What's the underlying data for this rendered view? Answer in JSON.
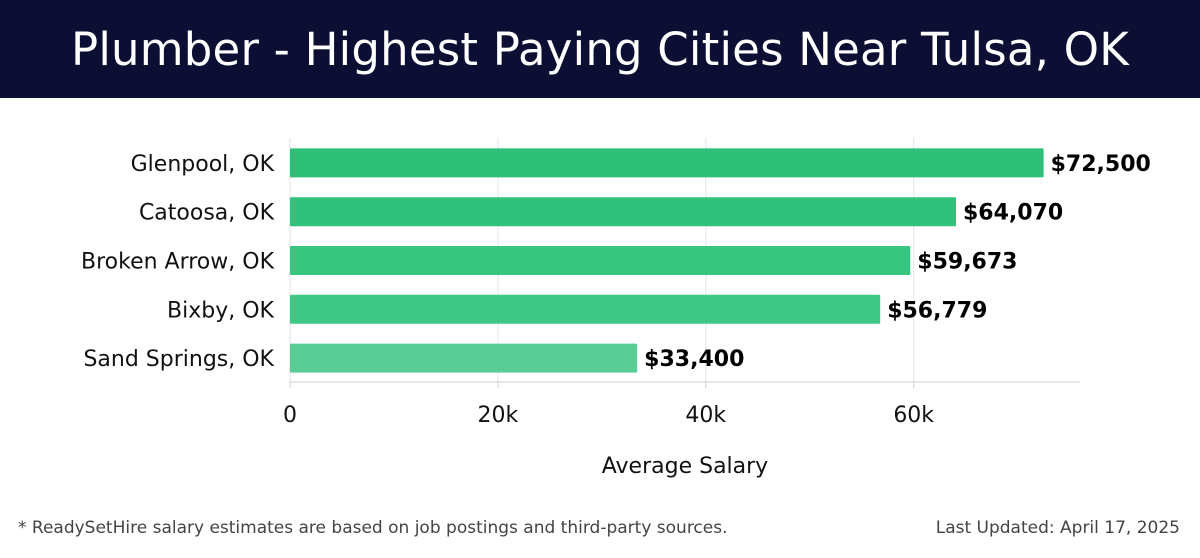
{
  "header": {
    "title": "Plumber - Highest Paying Cities Near Tulsa, OK"
  },
  "chart_data": {
    "type": "bar",
    "orientation": "horizontal",
    "title": "Plumber - Highest Paying Cities Near Tulsa, OK",
    "xlabel": "Average Salary",
    "ylabel": "",
    "categories": [
      "Glenpool, OK",
      "Catoosa, OK",
      "Broken Arrow, OK",
      "Bixby, OK",
      "Sand Springs, OK"
    ],
    "values": [
      72500,
      64070,
      59673,
      56779,
      33400
    ],
    "value_labels": [
      "$72,500",
      "$64,070",
      "$59,673",
      "$56,779",
      "$33,400"
    ],
    "bar_colors": [
      "#2bbf78",
      "#30c27c",
      "#37c580",
      "#3fc785",
      "#5acd97"
    ],
    "xlim": [
      0,
      76000
    ],
    "xticks": [
      0,
      20000,
      40000,
      60000
    ],
    "xtick_labels": [
      "0",
      "20k",
      "40k",
      "60k"
    ],
    "grid": true
  },
  "footer": {
    "note": "* ReadySetHire salary estimates are based on job postings and third-party sources.",
    "updated": "Last Updated: April 17, 2025"
  }
}
